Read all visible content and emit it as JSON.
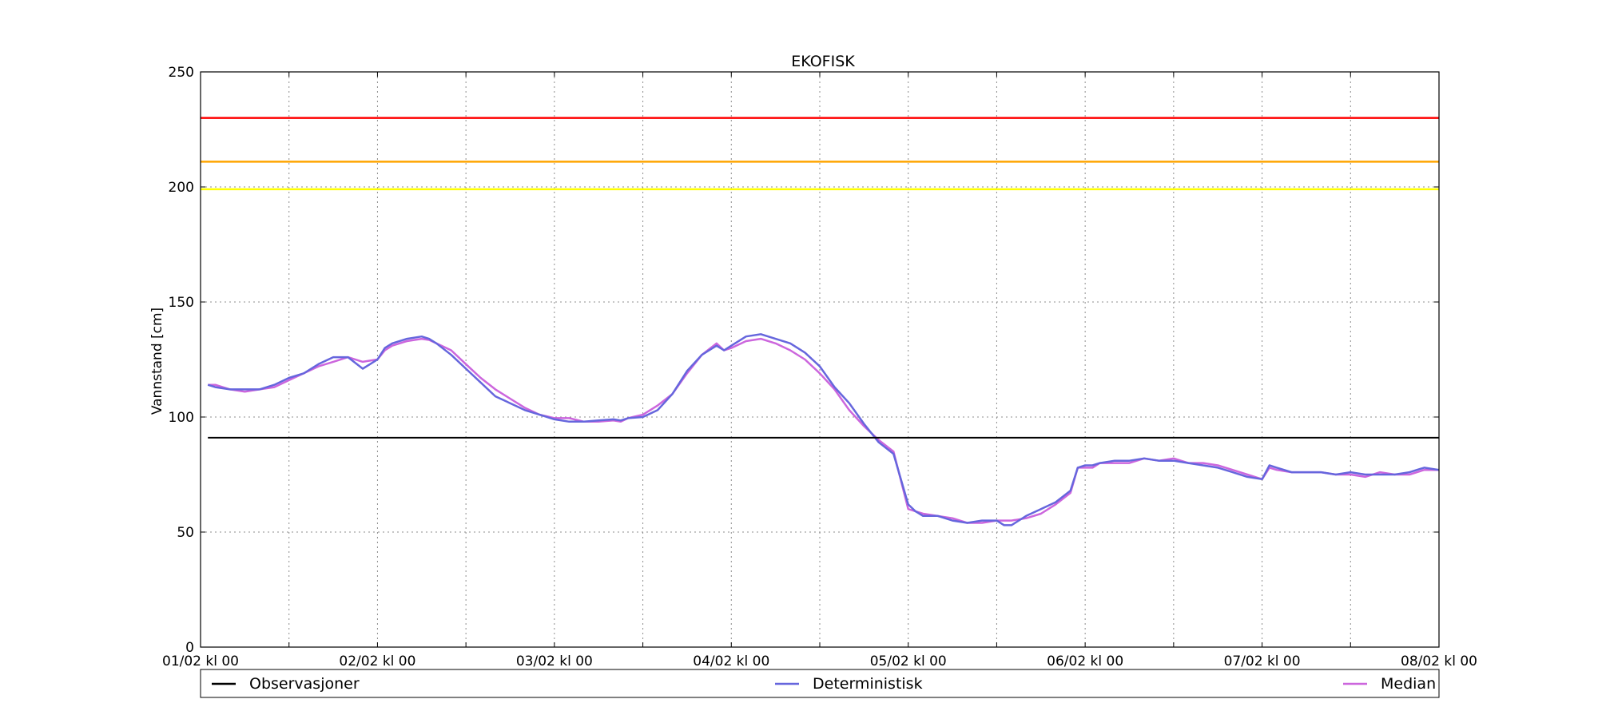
{
  "chart_data": {
    "type": "line",
    "title": "EKOFISK",
    "xlabel": "",
    "ylabel": "Vannstand [cm]",
    "ylim": [
      0,
      250
    ],
    "yticks": [
      0,
      50,
      100,
      150,
      200,
      250
    ],
    "xlim": [
      0,
      168
    ],
    "xticks": [
      {
        "x": 0,
        "label": "01/02 kl 00"
      },
      {
        "x": 24,
        "label": "02/02 kl 00"
      },
      {
        "x": 48,
        "label": "03/02 kl 00"
      },
      {
        "x": 72,
        "label": "04/02 kl 00"
      },
      {
        "x": 96,
        "label": "05/02 kl 00"
      },
      {
        "x": 120,
        "label": "06/02 kl 00"
      },
      {
        "x": 144,
        "label": "07/02 kl 00"
      },
      {
        "x": 168,
        "label": "08/02 kl 00"
      }
    ],
    "grid": true,
    "legend_position": "bottom",
    "thresholds": [
      {
        "value": 230,
        "color": "#ff0000"
      },
      {
        "value": 211,
        "color": "#ffa500"
      },
      {
        "value": 199,
        "color": "#ffff00"
      }
    ],
    "series": [
      {
        "name": "Observasjoner",
        "color": "#000000",
        "x": [
          1,
          168
        ],
        "values": [
          91,
          91
        ]
      },
      {
        "name": "Deterministisk",
        "color": "#6666dd",
        "x": [
          1,
          2,
          4,
          6,
          8,
          10,
          12,
          14,
          16,
          18,
          20,
          22,
          23,
          24,
          25,
          26,
          28,
          30,
          31,
          32,
          34,
          36,
          38,
          40,
          42,
          44,
          46,
          48,
          50,
          52,
          54,
          56,
          57,
          58,
          60,
          62,
          64,
          66,
          68,
          70,
          71,
          72,
          74,
          76,
          78,
          80,
          82,
          84,
          86,
          88,
          90,
          92,
          94,
          96,
          97,
          98,
          100,
          102,
          104,
          106,
          108,
          109,
          110,
          112,
          114,
          116,
          118,
          119,
          120,
          121,
          122,
          124,
          126,
          128,
          130,
          132,
          134,
          136,
          138,
          140,
          142,
          144,
          145,
          146,
          148,
          150,
          152,
          154,
          156,
          158,
          160,
          162,
          164,
          166,
          168
        ],
        "values": [
          114,
          113,
          112,
          112,
          112,
          114,
          117,
          119,
          123,
          126,
          126,
          121,
          123,
          125,
          130,
          132,
          134,
          135,
          134,
          132,
          127,
          121,
          115,
          109,
          106,
          103,
          101,
          99,
          98,
          98,
          98.5,
          99,
          98.5,
          99.5,
          100,
          103,
          110,
          120,
          127,
          131,
          129,
          131,
          135,
          136,
          134,
          132,
          128,
          122,
          113,
          106,
          97,
          89,
          84,
          62,
          59,
          57,
          57,
          55,
          54,
          55,
          55,
          53,
          53,
          57,
          60,
          63,
          68,
          78,
          79,
          79,
          80,
          81,
          81,
          82,
          81,
          81,
          80,
          79,
          78,
          76,
          74,
          73,
          79,
          78,
          76,
          76,
          76,
          75,
          76,
          75,
          75,
          75,
          76,
          78,
          77
        ]
      },
      {
        "name": "Median",
        "color": "#cc66dd",
        "x": [
          1,
          2,
          4,
          6,
          8,
          10,
          12,
          14,
          16,
          18,
          20,
          22,
          23,
          24,
          25,
          26,
          28,
          30,
          31,
          32,
          34,
          36,
          38,
          40,
          42,
          44,
          46,
          48,
          50,
          52,
          54,
          56,
          57,
          58,
          60,
          62,
          64,
          66,
          68,
          70,
          71,
          72,
          74,
          76,
          78,
          80,
          82,
          84,
          86,
          88,
          90,
          92,
          94,
          96,
          97,
          98,
          100,
          102,
          104,
          106,
          108,
          109,
          110,
          112,
          114,
          116,
          118,
          119,
          120,
          121,
          122,
          124,
          126,
          128,
          130,
          132,
          134,
          136,
          138,
          140,
          142,
          144,
          145,
          146,
          148,
          150,
          152,
          154,
          156,
          158,
          160,
          162,
          164,
          166,
          168
        ],
        "values": [
          114,
          114,
          112,
          111,
          112,
          113,
          116,
          119,
          122,
          124,
          126,
          124,
          124.5,
          125,
          129,
          131,
          133,
          134,
          133.5,
          132,
          129,
          123,
          117,
          112,
          108,
          104,
          101,
          99.5,
          99.5,
          98,
          98,
          98.5,
          98,
          99.5,
          101,
          105,
          110,
          119,
          127,
          132,
          129,
          130,
          133,
          134,
          132,
          129,
          125,
          119,
          112,
          103,
          96,
          90,
          85,
          60,
          59,
          58,
          57,
          56,
          54,
          54,
          55,
          55,
          55,
          56,
          58,
          62,
          67,
          78,
          78,
          78,
          80,
          80,
          80,
          82,
          81,
          82,
          80,
          80,
          79,
          77,
          75,
          73,
          78,
          77,
          76,
          76,
          76,
          75,
          75,
          74,
          76,
          75,
          75,
          77,
          77
        ]
      }
    ]
  }
}
